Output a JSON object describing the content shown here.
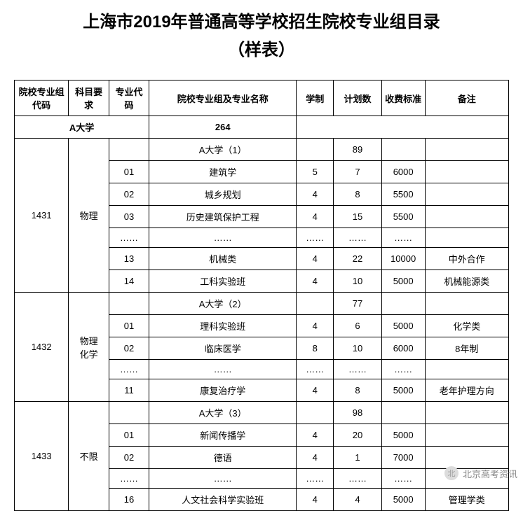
{
  "title_line1": "上海市2019年普通高等学校招生院校专业组目录",
  "title_line2": "（样表）",
  "headers": {
    "group_code": "院校专业组代码",
    "subject_req": "科目要求",
    "major_code": "专业代码",
    "group_major_name": "院校专业组及专业名称",
    "duration": "学制",
    "plan": "计划数",
    "fee": "收费标准",
    "note": "备注"
  },
  "school_total": {
    "school": "A大学",
    "total": "264"
  },
  "groups": [
    {
      "code": "1431",
      "req": "物理",
      "header_name": "A大学（1）",
      "header_plan": "89",
      "rows": [
        {
          "mcode": "01",
          "name": "建筑学",
          "dur": "5",
          "plan": "7",
          "fee": "6000",
          "note": ""
        },
        {
          "mcode": "02",
          "name": "城乡规划",
          "dur": "4",
          "plan": "8",
          "fee": "5500",
          "note": ""
        },
        {
          "mcode": "03",
          "name": "历史建筑保护工程",
          "dur": "4",
          "plan": "15",
          "fee": "5500",
          "note": ""
        },
        {
          "mcode": "……",
          "name": "……",
          "dur": "……",
          "plan": "……",
          "fee": "……",
          "note": ""
        },
        {
          "mcode": "13",
          "name": "机械类",
          "dur": "4",
          "plan": "22",
          "fee": "10000",
          "note": "中外合作"
        },
        {
          "mcode": "14",
          "name": "工科实验班",
          "dur": "4",
          "plan": "10",
          "fee": "5000",
          "note": "机械能源类"
        }
      ]
    },
    {
      "code": "1432",
      "req": "物理\n化学",
      "header_name": "A大学（2）",
      "header_plan": "77",
      "rows": [
        {
          "mcode": "01",
          "name": "理科实验班",
          "dur": "4",
          "plan": "6",
          "fee": "5000",
          "note": "化学类"
        },
        {
          "mcode": "02",
          "name": "临床医学",
          "dur": "8",
          "plan": "10",
          "fee": "6000",
          "note": "8年制"
        },
        {
          "mcode": "……",
          "name": "……",
          "dur": "……",
          "plan": "……",
          "fee": "……",
          "note": ""
        },
        {
          "mcode": "11",
          "name": "康复治疗学",
          "dur": "4",
          "plan": "8",
          "fee": "5000",
          "note": "老年护理方向"
        }
      ]
    },
    {
      "code": "1433",
      "req": "不限",
      "header_name": "A大学（3）",
      "header_plan": "98",
      "rows": [
        {
          "mcode": "01",
          "name": "新闻传播学",
          "dur": "4",
          "plan": "20",
          "fee": "5000",
          "note": ""
        },
        {
          "mcode": "02",
          "name": "德语",
          "dur": "4",
          "plan": "1",
          "fee": "7000",
          "note": ""
        },
        {
          "mcode": "……",
          "name": "……",
          "dur": "……",
          "plan": "……",
          "fee": "……",
          "note": ""
        },
        {
          "mcode": "16",
          "name": "人文社会科学实验班",
          "dur": "4",
          "plan": "4",
          "fee": "5000",
          "note": "管理学类"
        }
      ]
    }
  ],
  "watermark": {
    "text": "北京高考资讯",
    "icon": "北"
  },
  "colors": {
    "text": "#000000",
    "border": "#000000",
    "bg": "#ffffff",
    "watermark": "#888888"
  }
}
